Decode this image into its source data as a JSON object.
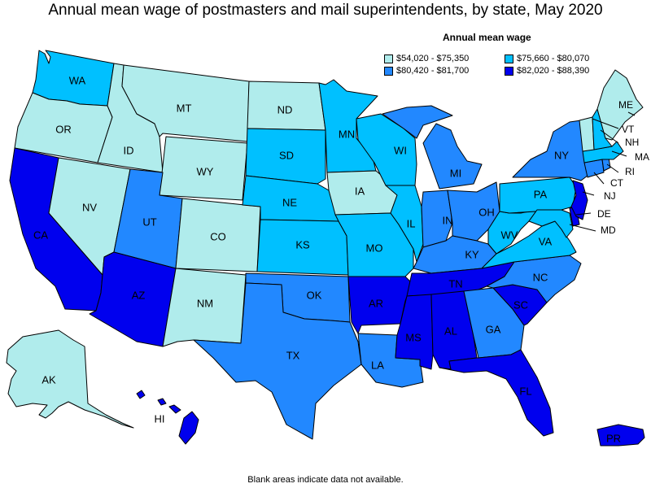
{
  "title": "Annual mean wage of postmasters and mail superintendents, by state, May 2020",
  "legend": {
    "title": "Annual mean wage",
    "items": [
      {
        "label": "$54,020 - $75,350",
        "color": "#b0ecec"
      },
      {
        "label": "$75,660 - $80,070",
        "color": "#00c0ff"
      },
      {
        "label": "$80,420 - $81,700",
        "color": "#2288ff"
      },
      {
        "label": "$82,020 - $88,390",
        "color": "#0000ee"
      }
    ]
  },
  "footnote": "Blank areas indicate data not available.",
  "states": [
    {
      "abbr": "WA",
      "tier": 1
    },
    {
      "abbr": "OR",
      "tier": 0
    },
    {
      "abbr": "CA",
      "tier": 3
    },
    {
      "abbr": "ID",
      "tier": 0
    },
    {
      "abbr": "NV",
      "tier": 0
    },
    {
      "abbr": "MT",
      "tier": 0
    },
    {
      "abbr": "WY",
      "tier": 0
    },
    {
      "abbr": "UT",
      "tier": 2
    },
    {
      "abbr": "AZ",
      "tier": 3
    },
    {
      "abbr": "CO",
      "tier": 0
    },
    {
      "abbr": "NM",
      "tier": 0
    },
    {
      "abbr": "ND",
      "tier": 0
    },
    {
      "abbr": "SD",
      "tier": 1
    },
    {
      "abbr": "NE",
      "tier": 1
    },
    {
      "abbr": "KS",
      "tier": 1
    },
    {
      "abbr": "OK",
      "tier": 2
    },
    {
      "abbr": "TX",
      "tier": 2
    },
    {
      "abbr": "MN",
      "tier": 1
    },
    {
      "abbr": "IA",
      "tier": 0
    },
    {
      "abbr": "MO",
      "tier": 1
    },
    {
      "abbr": "AR",
      "tier": 3
    },
    {
      "abbr": "LA",
      "tier": 2
    },
    {
      "abbr": "WI",
      "tier": 1
    },
    {
      "abbr": "IL",
      "tier": 1
    },
    {
      "abbr": "MI",
      "tier": 2
    },
    {
      "abbr": "IN",
      "tier": 2
    },
    {
      "abbr": "OH",
      "tier": 2
    },
    {
      "abbr": "KY",
      "tier": 2
    },
    {
      "abbr": "TN",
      "tier": 3
    },
    {
      "abbr": "MS",
      "tier": 3
    },
    {
      "abbr": "AL",
      "tier": 3
    },
    {
      "abbr": "GA",
      "tier": 2
    },
    {
      "abbr": "FL",
      "tier": 3
    },
    {
      "abbr": "SC",
      "tier": 3
    },
    {
      "abbr": "NC",
      "tier": 2
    },
    {
      "abbr": "VA",
      "tier": 1
    },
    {
      "abbr": "WV",
      "tier": 1
    },
    {
      "abbr": "PA",
      "tier": 1
    },
    {
      "abbr": "NY",
      "tier": 2
    },
    {
      "abbr": "ME",
      "tier": 0
    },
    {
      "abbr": "VT",
      "tier": 0
    },
    {
      "abbr": "NH",
      "tier": 1
    },
    {
      "abbr": "MA",
      "tier": 1
    },
    {
      "abbr": "RI",
      "tier": 2
    },
    {
      "abbr": "CT",
      "tier": 2
    },
    {
      "abbr": "NJ",
      "tier": 3
    },
    {
      "abbr": "DE",
      "tier": 3
    },
    {
      "abbr": "MD",
      "tier": 1
    },
    {
      "abbr": "AK",
      "tier": 0
    },
    {
      "abbr": "HI",
      "tier": 3
    },
    {
      "abbr": "PR",
      "tier": 3
    }
  ]
}
